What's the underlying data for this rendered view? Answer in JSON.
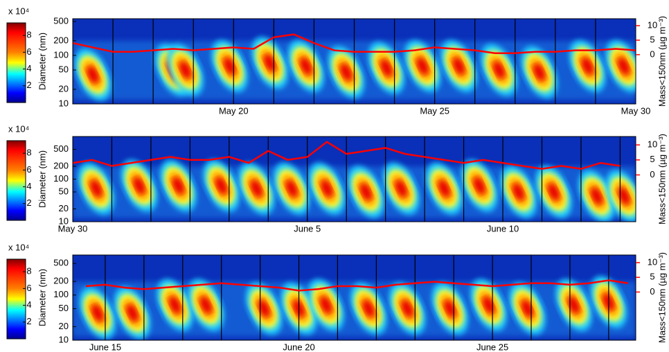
{
  "chart_data": [
    {
      "type": "heatmap",
      "ylabel": "Diameter (nm)",
      "y2label": "Mass<150nm (µg m⁻³)",
      "colorbar_label": "x 10⁴",
      "xlim": [
        16,
        30
      ],
      "xticks": [
        {
          "value": 20,
          "label": "May 20"
        },
        {
          "value": 25,
          "label": "May 25"
        },
        {
          "value": 30,
          "label": "May 30"
        }
      ],
      "ylim": [
        10,
        570
      ],
      "log_y": true,
      "yticks": [
        10,
        20,
        50,
        100,
        200,
        500
      ],
      "y2lim": [
        -17,
        12.4
      ],
      "y2ticks": [
        0,
        5,
        10
      ],
      "clim": [
        0,
        9.5
      ],
      "cticks": [
        2,
        4,
        6,
        8
      ],
      "events": {
        "x": [
          16.5,
          18.5,
          18.8,
          19.9,
          20.9,
          21.8,
          22.8,
          23.8,
          24.7,
          25.6,
          26.6,
          27.6,
          28.8,
          29.7
        ],
        "diameter": [
          40,
          50,
          50,
          60,
          70,
          60,
          45,
          55,
          60,
          60,
          50,
          45,
          60,
          60
        ]
      },
      "series": [
        {
          "color": "#ff0000",
          "axis": "y2",
          "x": [
            16,
            16.5,
            17,
            17.5,
            18,
            18.5,
            19,
            19.5,
            20,
            20.5,
            21,
            21.5,
            22,
            22.5,
            23,
            23.5,
            24,
            24.5,
            25,
            25.5,
            26,
            26.5,
            27,
            27.5,
            28,
            28.5,
            29,
            29.5,
            30
          ],
          "values": [
            4,
            2.5,
            1,
            1,
            1.5,
            2,
            1.5,
            2,
            2.5,
            2,
            6,
            7,
            4,
            1.5,
            1,
            1,
            1,
            1.5,
            2.5,
            2,
            1.5,
            0.5,
            0.5,
            1,
            1,
            1.5,
            1.5,
            2,
            1.5
          ]
        }
      ]
    },
    {
      "type": "heatmap",
      "ylabel": "Diameter (nm)",
      "y2label": "Mass<150nm (µg m⁻³)",
      "colorbar_label": "x 10⁴",
      "xlim": [
        30,
        44.4
      ],
      "xticks": [
        {
          "value": 30,
          "label": "May 30"
        },
        {
          "value": 36,
          "label": "June 5"
        },
        {
          "value": 41,
          "label": "June 10"
        }
      ],
      "ylim": [
        10,
        1000
      ],
      "log_y": true,
      "yticks": [
        10,
        20,
        50,
        100,
        200,
        500
      ],
      "y2lim": [
        -15.6,
        12.8
      ],
      "y2ticks": [
        0,
        5,
        10
      ],
      "clim": [
        0,
        9.5
      ],
      "cticks": [
        2,
        4,
        6,
        8
      ],
      "events": {
        "x": [
          30.6,
          31.7,
          32.7,
          33.8,
          34.7,
          35.6,
          36.5,
          37.5,
          38.4,
          39.5,
          40.4,
          41.4,
          42.3,
          43.4,
          44.1
        ],
        "diameter": [
          60,
          70,
          70,
          70,
          60,
          60,
          60,
          50,
          60,
          60,
          70,
          50,
          50,
          40,
          40
        ]
      },
      "series": [
        {
          "color": "#ff0000",
          "axis": "y2",
          "x": [
            30,
            30.5,
            31,
            31.5,
            32,
            32.5,
            33,
            33.5,
            34,
            34.5,
            35,
            35.5,
            36,
            36.5,
            37,
            37.5,
            38,
            38.5,
            39,
            39.5,
            40,
            40.5,
            41,
            41.5,
            42,
            42.5,
            43,
            43.5,
            44
          ],
          "values": [
            4,
            5,
            3,
            4,
            5,
            6,
            5,
            5,
            6,
            4,
            8,
            5,
            6,
            11,
            7,
            8,
            9,
            7,
            6,
            5,
            4,
            5,
            4,
            3,
            2,
            3,
            2,
            4,
            3
          ]
        }
      ]
    },
    {
      "type": "heatmap",
      "ylabel": "Diameter (nm)",
      "y2label": "Mass<150nm (µg m⁻³)",
      "colorbar_label": "x 10⁴",
      "xlim": [
        14.16,
        28.7
      ],
      "xticks": [
        {
          "value": 15,
          "label": "June 15"
        },
        {
          "value": 20,
          "label": "June 20"
        },
        {
          "value": 25,
          "label": "June 25"
        }
      ],
      "ylim": [
        10,
        770
      ],
      "log_y": true,
      "yticks": [
        10,
        20,
        50,
        100,
        200,
        500
      ],
      "y2lim": [
        -16.4,
        12.6
      ],
      "y2ticks": [
        0,
        5,
        10
      ],
      "clim": [
        0,
        9.5
      ],
      "cticks": [
        2,
        4,
        6,
        8
      ],
      "events": {
        "x": [
          14.8,
          15.7,
          16.8,
          17.6,
          19.1,
          20,
          20.7,
          21.8,
          22.8,
          23.9,
          24.9,
          25.9,
          27.1,
          28
        ],
        "diameter": [
          40,
          40,
          60,
          60,
          50,
          50,
          60,
          50,
          50,
          50,
          60,
          50,
          60,
          70
        ]
      },
      "series": [
        {
          "color": "#ff0000",
          "axis": "y2",
          "x": [
            14.5,
            15,
            15.5,
            16,
            16.5,
            17,
            17.5,
            18,
            18.5,
            19,
            19.5,
            20,
            20.5,
            21,
            21.5,
            22,
            22.5,
            23,
            23.5,
            24,
            24.5,
            25,
            25.5,
            26,
            26.5,
            27,
            27.5,
            28,
            28.5
          ],
          "values": [
            2,
            2.5,
            1.5,
            1,
            1.5,
            2,
            2.5,
            3,
            2.5,
            2,
            1.5,
            0.5,
            1,
            2,
            2,
            1.5,
            2.5,
            3,
            3.5,
            3,
            2.5,
            2,
            2.5,
            3,
            3,
            2.5,
            3,
            4,
            3
          ]
        }
      ]
    }
  ]
}
